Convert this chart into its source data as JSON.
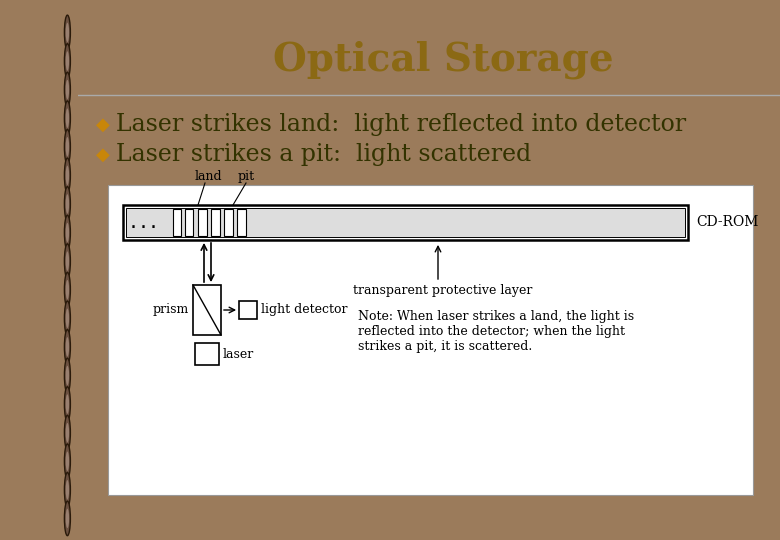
{
  "title": "Optical Storage",
  "title_color": "#8B6914",
  "title_fontsize": 28,
  "bg_color": "#F5F0D0",
  "slide_bg": "#9B7B5B",
  "bullet_color": "#C8860A",
  "bullet1": "Laser strikes land:  light reflected into detector",
  "bullet2": "Laser strikes a pit:  light scattered",
  "bullet_fontsize": 17,
  "text_color": "#000000",
  "note_text": "Note: When laser strikes a land, the light is\nreflected into the detector; when the light\nstrikes a pit, it is scattered."
}
